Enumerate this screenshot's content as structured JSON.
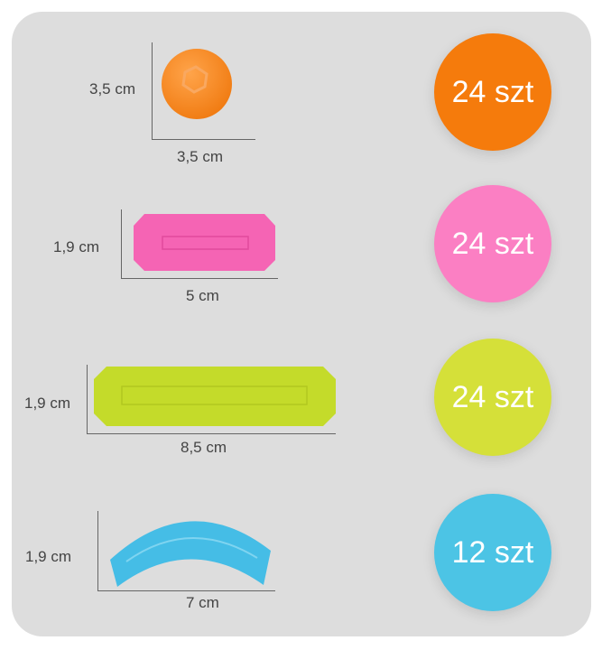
{
  "pieces": [
    {
      "shape": "ball",
      "height_label": "3,5 cm",
      "width_label": "3,5 cm",
      "count_label": "24 szt",
      "color": "#f57b0c"
    },
    {
      "shape": "short-rod",
      "height_label": "1,9 cm",
      "width_label": "5 cm",
      "count_label": "24 szt",
      "color": "#fb7fc3"
    },
    {
      "shape": "long-rod",
      "height_label": "1,9 cm",
      "width_label": "8,5 cm",
      "count_label": "24 szt",
      "color": "#d5e039"
    },
    {
      "shape": "curved-piece",
      "height_label": "1,9 cm",
      "width_label": "7 cm",
      "count_label": "12 szt",
      "color": "#4cc4e5"
    }
  ]
}
